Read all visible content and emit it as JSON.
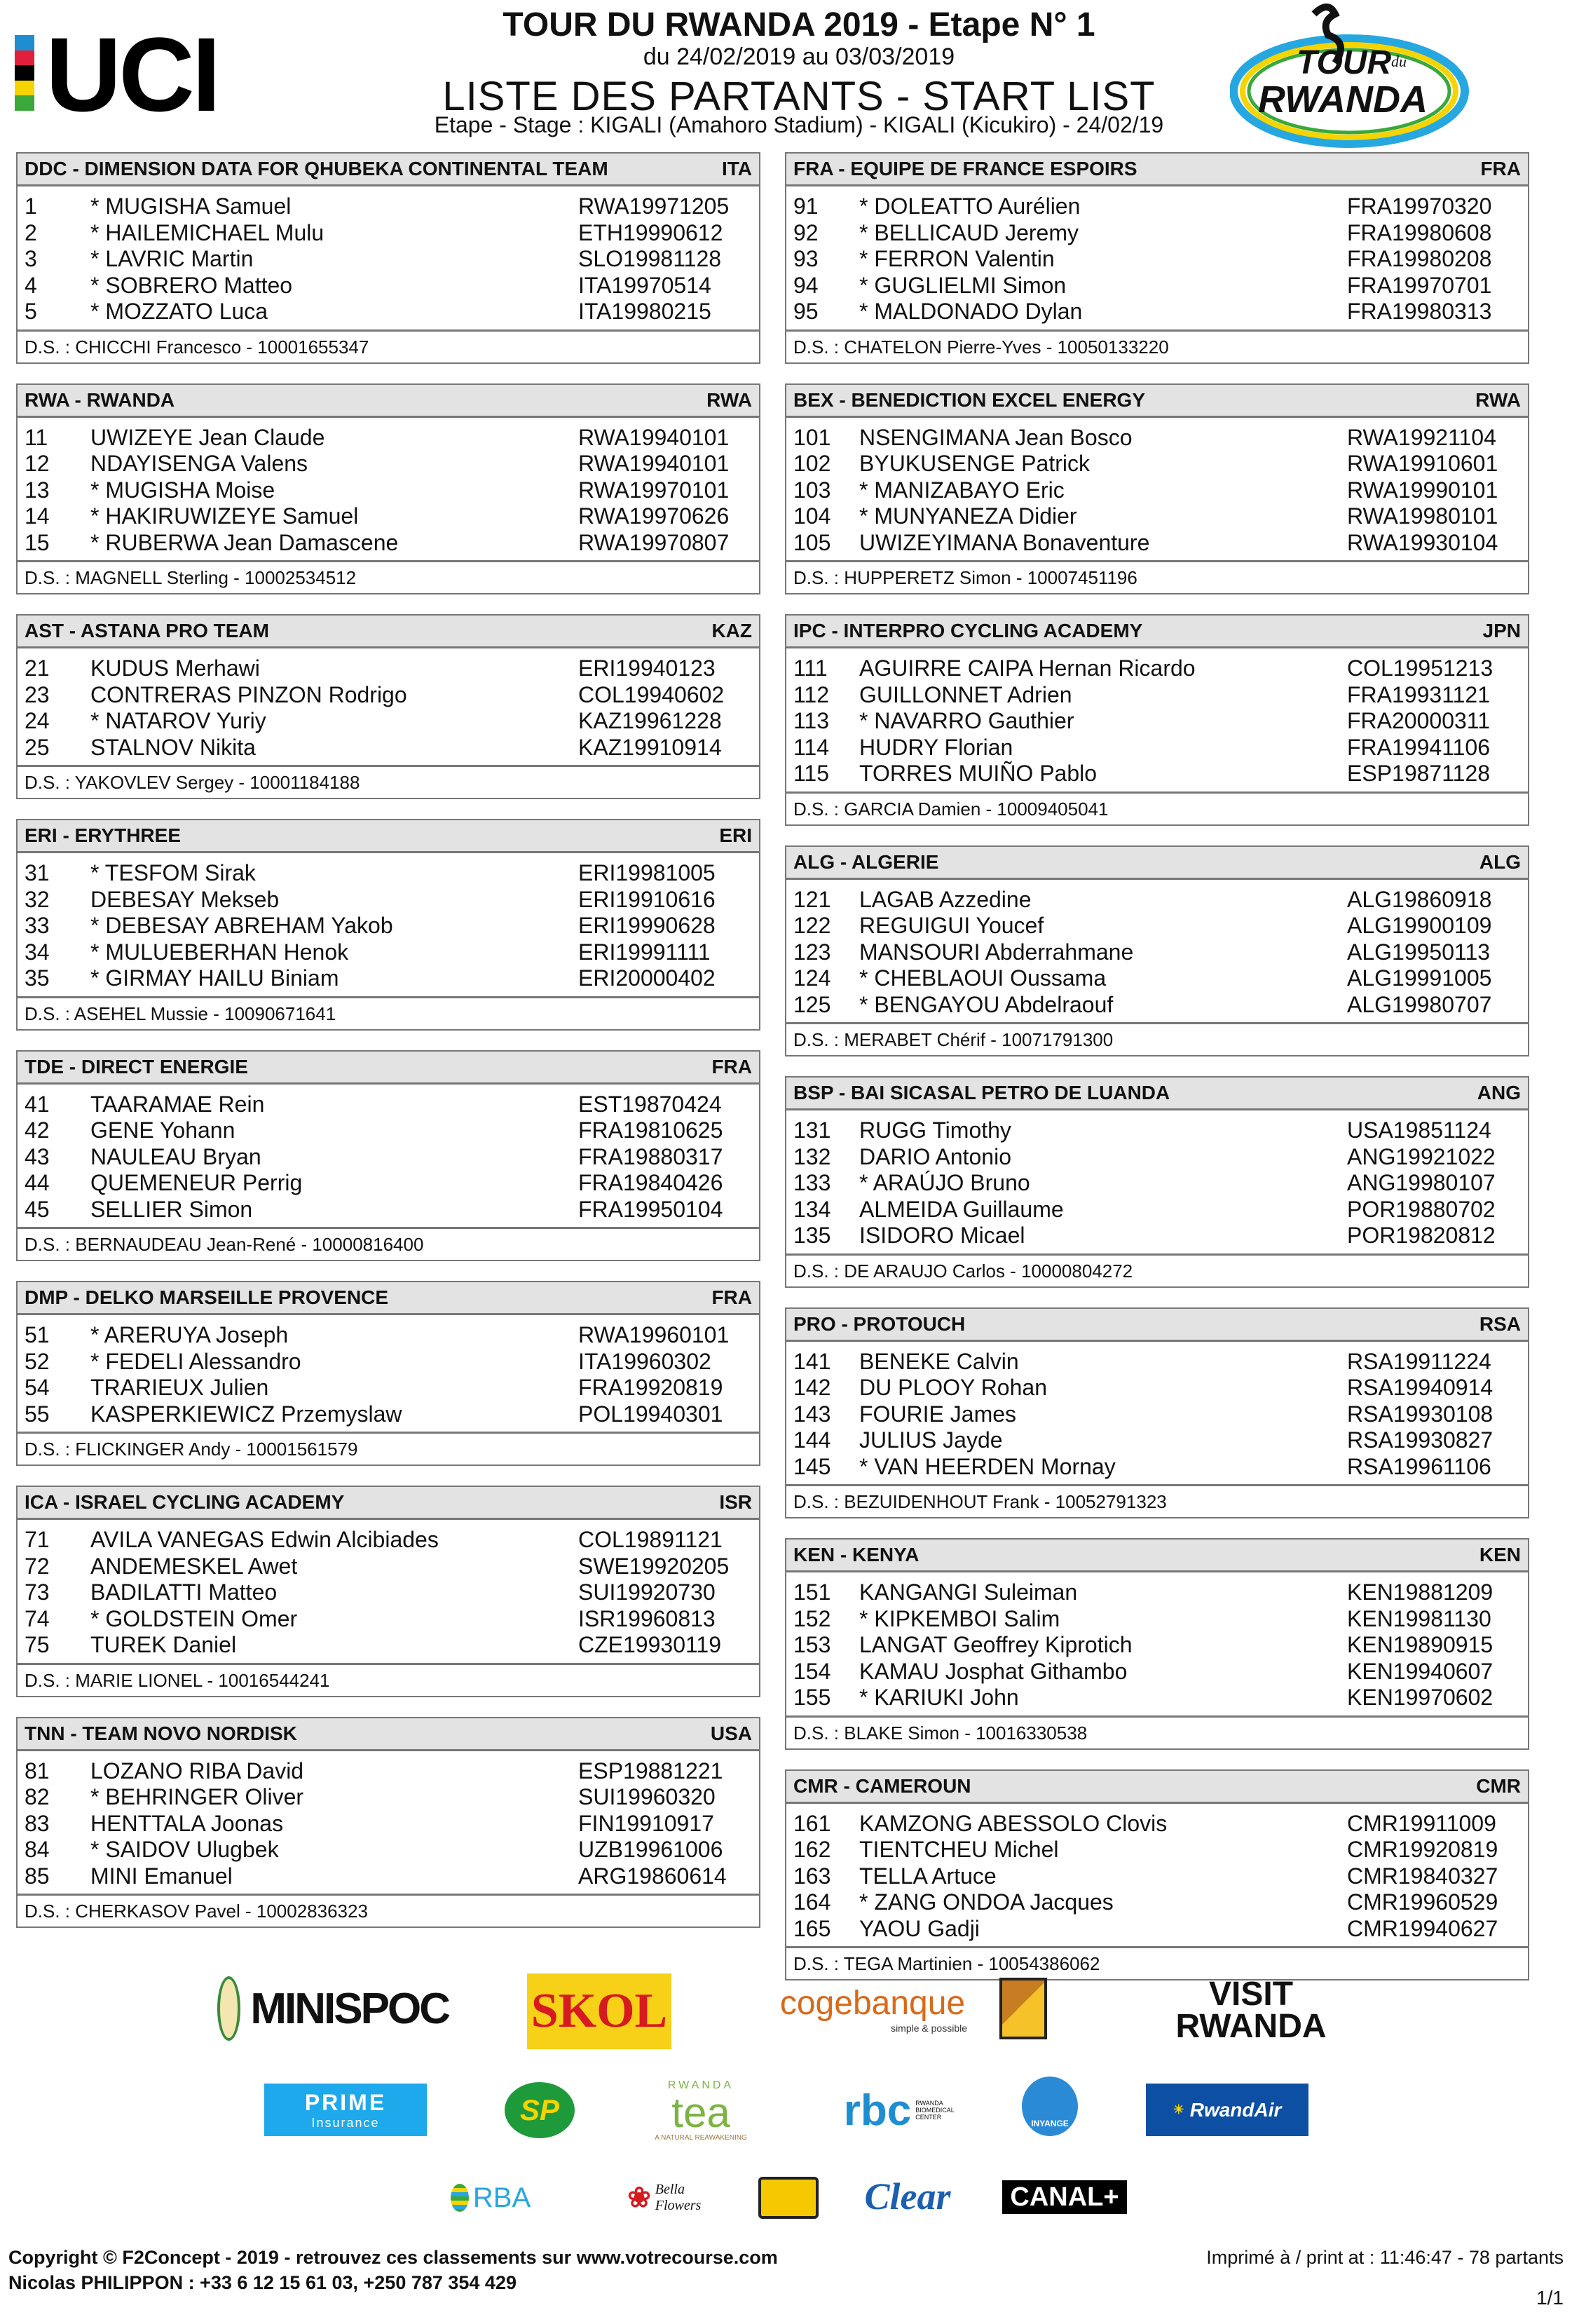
{
  "header": {
    "uci_logo": "UCI",
    "title": "TOUR DU RWANDA 2019 - Etape N° 1",
    "dates": "du 24/02/2019 au 03/03/2019",
    "subtitle": "LISTE DES PARTANTS - START LIST",
    "stage": "Etape - Stage : KIGALI (Amahoro Stadium) - KIGALI (Kicukiro) - 24/02/19",
    "race_logo_line1": "TOUR",
    "race_logo_du": "du",
    "race_logo_line2": "RWANDA"
  },
  "colors": {
    "header_bg": "#e3e3e3",
    "border": "#777777",
    "uci_stripes": [
      "#1f8ed0",
      "#e0203a",
      "#000000",
      "#f5d400",
      "#3aa83a"
    ]
  },
  "teams_left": [
    {
      "name": "DDC - DIMENSION DATA FOR QHUBEKA CONTINENTAL TEAM",
      "country": "ITA",
      "riders": [
        [
          "1",
          "* MUGISHA Samuel",
          "RWA19971205"
        ],
        [
          "2",
          "* HAILEMICHAEL Mulu",
          "ETH19990612"
        ],
        [
          "3",
          "* LAVRIC Martin",
          "SLO19981128"
        ],
        [
          "4",
          "* SOBRERO Matteo",
          "ITA19970514"
        ],
        [
          "5",
          "* MOZZATO Luca",
          "ITA19980215"
        ]
      ],
      "ds": "D.S. : CHICCHI Francesco - 10001655347"
    },
    {
      "name": "RWA - RWANDA",
      "country": "RWA",
      "riders": [
        [
          "11",
          "UWIZEYE Jean Claude",
          "RWA19940101"
        ],
        [
          "12",
          "NDAYISENGA Valens",
          "RWA19940101"
        ],
        [
          "13",
          "* MUGISHA Moise",
          "RWA19970101"
        ],
        [
          "14",
          "* HAKIRUWIZEYE Samuel",
          "RWA19970626"
        ],
        [
          "15",
          "* RUBERWA Jean Damascene",
          "RWA19970807"
        ]
      ],
      "ds": "D.S. : MAGNELL Sterling - 10002534512"
    },
    {
      "name": "AST - ASTANA PRO TEAM",
      "country": "KAZ",
      "riders": [
        [
          "21",
          "KUDUS Merhawi",
          "ERI19940123"
        ],
        [
          "23",
          "CONTRERAS PINZON Rodrigo",
          "COL19940602"
        ],
        [
          "24",
          "* NATAROV Yuriy",
          "KAZ19961228"
        ],
        [
          "25",
          "STALNOV Nikita",
          "KAZ19910914"
        ]
      ],
      "ds": "D.S. : YAKOVLEV Sergey - 10001184188"
    },
    {
      "name": "ERI - ERYTHREE",
      "country": "ERI",
      "riders": [
        [
          "31",
          "* TESFOM Sirak",
          "ERI19981005"
        ],
        [
          "32",
          "DEBESAY Mekseb",
          "ERI19910616"
        ],
        [
          "33",
          "* DEBESAY ABREHAM Yakob",
          "ERI19990628"
        ],
        [
          "34",
          "* MULUEBERHAN Henok",
          "ERI19991111"
        ],
        [
          "35",
          "* GIRMAY HAILU Biniam",
          "ERI20000402"
        ]
      ],
      "ds": "D.S. : ASEHEL Mussie - 10090671641"
    },
    {
      "name": "TDE - DIRECT ENERGIE",
      "country": "FRA",
      "riders": [
        [
          "41",
          "TAARAMAE Rein",
          "EST19870424"
        ],
        [
          "42",
          "GENE Yohann",
          "FRA19810625"
        ],
        [
          "43",
          "NAULEAU Bryan",
          "FRA19880317"
        ],
        [
          "44",
          "QUEMENEUR Perrig",
          "FRA19840426"
        ],
        [
          "45",
          "SELLIER Simon",
          "FRA19950104"
        ]
      ],
      "ds": "D.S. : BERNAUDEAU Jean-René - 10000816400"
    },
    {
      "name": "DMP - DELKO MARSEILLE PROVENCE",
      "country": "FRA",
      "riders": [
        [
          "51",
          "* ARERUYA Joseph",
          "RWA19960101"
        ],
        [
          "52",
          "* FEDELI Alessandro",
          "ITA19960302"
        ],
        [
          "54",
          "TRARIEUX Julien",
          "FRA19920819"
        ],
        [
          "55",
          "KASPERKIEWICZ Przemyslaw",
          "POL19940301"
        ]
      ],
      "ds": "D.S. : FLICKINGER Andy - 10001561579"
    },
    {
      "name": "ICA - ISRAEL CYCLING ACADEMY",
      "country": "ISR",
      "riders": [
        [
          "71",
          "AVILA VANEGAS Edwin Alcibiades",
          "COL19891121"
        ],
        [
          "72",
          "ANDEMESKEL Awet",
          "SWE19920205"
        ],
        [
          "73",
          "BADILATTI Matteo",
          "SUI19920730"
        ],
        [
          "74",
          "* GOLDSTEIN Omer",
          "ISR19960813"
        ],
        [
          "75",
          "TUREK Daniel",
          "CZE19930119"
        ]
      ],
      "ds": "D.S. : MARIE LIONEL - 10016544241"
    },
    {
      "name": "TNN - TEAM NOVO NORDISK",
      "country": "USA",
      "riders": [
        [
          "81",
          "LOZANO RIBA David",
          "ESP19881221"
        ],
        [
          "82",
          "* BEHRINGER Oliver",
          "SUI19960320"
        ],
        [
          "83",
          "HENTTALA Joonas",
          "FIN19910917"
        ],
        [
          "84",
          "* SAIDOV Ulugbek",
          "UZB19961006"
        ],
        [
          "85",
          "MINI Emanuel",
          "ARG19860614"
        ]
      ],
      "ds": "D.S. : CHERKASOV Pavel - 10002836323"
    }
  ],
  "teams_right": [
    {
      "name": "FRA - EQUIPE DE FRANCE ESPOIRS",
      "country": "FRA",
      "riders": [
        [
          "91",
          "* DOLEATTO Aurélien",
          "FRA19970320"
        ],
        [
          "92",
          "* BELLICAUD Jeremy",
          "FRA19980608"
        ],
        [
          "93",
          "* FERRON Valentin",
          "FRA19980208"
        ],
        [
          "94",
          "* GUGLIELMI Simon",
          "FRA19970701"
        ],
        [
          "95",
          "* MALDONADO Dylan",
          "FRA19980313"
        ]
      ],
      "ds": "D.S. : CHATELON Pierre-Yves - 10050133220"
    },
    {
      "name": "BEX - BENEDICTION EXCEL ENERGY",
      "country": "RWA",
      "riders": [
        [
          "101",
          "NSENGIMANA Jean Bosco",
          "RWA19921104"
        ],
        [
          "102",
          "BYUKUSENGE Patrick",
          "RWA19910601"
        ],
        [
          "103",
          "* MANIZABAYO Eric",
          "RWA19990101"
        ],
        [
          "104",
          "* MUNYANEZA Didier",
          "RWA19980101"
        ],
        [
          "105",
          "UWIZEYIMANA Bonaventure",
          "RWA19930104"
        ]
      ],
      "ds": "D.S. : HUPPERETZ Simon - 10007451196"
    },
    {
      "name": "IPC - INTERPRO CYCLING ACADEMY",
      "country": "JPN",
      "riders": [
        [
          "111",
          "AGUIRRE CAIPA Hernan Ricardo",
          "COL19951213"
        ],
        [
          "112",
          "GUILLONNET Adrien",
          "FRA19931121"
        ],
        [
          "113",
          "* NAVARRO Gauthier",
          "FRA20000311"
        ],
        [
          "114",
          "HUDRY Florian",
          "FRA19941106"
        ],
        [
          "115",
          "TORRES MUIÑO Pablo",
          "ESP19871128"
        ]
      ],
      "ds": "D.S. : GARCIA Damien - 10009405041"
    },
    {
      "name": "ALG - ALGERIE",
      "country": "ALG",
      "riders": [
        [
          "121",
          "LAGAB Azzedine",
          "ALG19860918"
        ],
        [
          "122",
          "REGUIGUI Youcef",
          "ALG19900109"
        ],
        [
          "123",
          "MANSOURI Abderrahmane",
          "ALG19950113"
        ],
        [
          "124",
          "* CHEBLAOUI Oussama",
          "ALG19991005"
        ],
        [
          "125",
          "* BENGAYOU Abdelraouf",
          "ALG19980707"
        ]
      ],
      "ds": "D.S. : MERABET Chérif - 10071791300"
    },
    {
      "name": "BSP - BAI SICASAL PETRO DE LUANDA",
      "country": "ANG",
      "riders": [
        [
          "131",
          "RUGG Timothy",
          "USA19851124"
        ],
        [
          "132",
          "DARIO Antonio",
          "ANG19921022"
        ],
        [
          "133",
          "* ARAÚJO Bruno",
          "ANG19980107"
        ],
        [
          "134",
          "ALMEIDA Guillaume",
          "POR19880702"
        ],
        [
          "135",
          "ISIDORO Micael",
          "POR19820812"
        ]
      ],
      "ds": "D.S. : DE ARAUJO Carlos - 10000804272"
    },
    {
      "name": "PRO - PROTOUCH",
      "country": "RSA",
      "riders": [
        [
          "141",
          "BENEKE Calvin",
          "RSA19911224"
        ],
        [
          "142",
          "DU PLOOY Rohan",
          "RSA19940914"
        ],
        [
          "143",
          "FOURIE James",
          "RSA19930108"
        ],
        [
          "144",
          "JULIUS Jayde",
          "RSA19930827"
        ],
        [
          "145",
          "* VAN HEERDEN Mornay",
          "RSA19961106"
        ]
      ],
      "ds": "D.S. : BEZUIDENHOUT Frank - 10052791323"
    },
    {
      "name": "KEN - KENYA",
      "country": "KEN",
      "riders": [
        [
          "151",
          "KANGANGI Suleiman",
          "KEN19881209"
        ],
        [
          "152",
          "* KIPKEMBOI Salim",
          "KEN19981130"
        ],
        [
          "153",
          "LANGAT Geoffrey Kiprotich",
          "KEN19890915"
        ],
        [
          "154",
          "KAMAU Josphat Githambo",
          "KEN19940607"
        ],
        [
          "155",
          "* KARIUKI John",
          "KEN19970602"
        ]
      ],
      "ds": "D.S. : BLAKE Simon - 10016330538"
    },
    {
      "name": "CMR - CAMEROUN",
      "country": "CMR",
      "riders": [
        [
          "161",
          "KAMZONG ABESSOLO Clovis",
          "CMR19911009"
        ],
        [
          "162",
          "TIENTCHEU Michel",
          "CMR19920819"
        ],
        [
          "163",
          "TELLA Artuce",
          "CMR19840327"
        ],
        [
          "164",
          "* ZANG ONDOA Jacques",
          "CMR19960529"
        ],
        [
          "165",
          "YAOU Gadji",
          "CMR19940627"
        ]
      ],
      "ds": "D.S. : TEGA Martinien - 10054386062"
    }
  ],
  "sponsors": {
    "minispoc": "MINISPOC",
    "skol": "SKOL",
    "cogebanque": "cogebanque",
    "cogebanque_tag": "simple & possible",
    "visit_rwanda_1": "VISIT",
    "visit_rwanda_2": "RWANDA",
    "prime": "PRIME",
    "prime_sub": "Insurance",
    "sp": "SP",
    "tea_top": "RWANDA",
    "tea": "tea",
    "tea_tag": "A NATURAL REAWAKENING",
    "rbc": "rbc",
    "rbc_sub": "RWANDA BIOMEDICAL CENTER",
    "inyange": "INYANGE",
    "rwandair": "RwandAir",
    "rba": "RBA",
    "bella": "Bella Flowers",
    "clear": "Clear",
    "canal": "CANAL+"
  },
  "footer": {
    "copyright": "Copyright © F2Concept - 2019 - retrouvez ces classements sur www.votrecourse.com",
    "contact": "Nicolas PHILIPPON : +33 6 12 15 61 03, +250 787 354 429",
    "printed": "Imprimé à / print at : 11:46:47 - 78 partants",
    "page": "1/1"
  }
}
